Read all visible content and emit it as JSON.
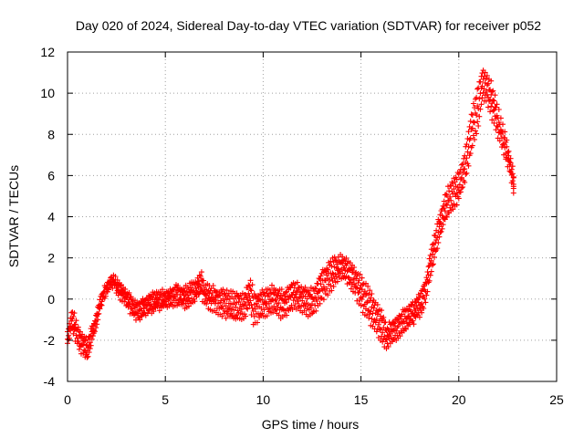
{
  "chart_data": {
    "type": "scatter",
    "title": "Day 020 of 2024, Sidereal Day-to-day VTEC variation (SDTVAR) for receiver p052",
    "xlabel": "GPS time / hours",
    "ylabel": "SDTVAR / TECUs",
    "xlim": [
      0,
      25
    ],
    "ylim": [
      -4,
      12
    ],
    "xticks": [
      0,
      5,
      10,
      15,
      20,
      25
    ],
    "yticks": [
      -4,
      -2,
      0,
      2,
      4,
      6,
      8,
      10,
      12
    ],
    "grid": true,
    "marker": "+",
    "colors": {
      "series": "#ff0000",
      "grid": "#a0a0a0",
      "axis": "#000000"
    },
    "series": [
      {
        "name": "SDTVAR",
        "sample_step_hours": 0.1,
        "x": [
          0.0,
          0.2,
          0.4,
          0.6,
          0.8,
          1.0,
          1.2,
          1.4,
          1.6,
          1.8,
          2.0,
          2.2,
          2.4,
          2.6,
          2.8,
          3.0,
          3.2,
          3.4,
          3.6,
          3.8,
          4.0,
          4.5,
          5.0,
          5.5,
          6.0,
          6.5,
          6.8,
          7.0,
          7.5,
          8.0,
          8.5,
          9.0,
          9.3,
          9.5,
          10.0,
          10.5,
          11.0,
          11.5,
          12.0,
          12.5,
          13.0,
          13.5,
          14.0,
          14.5,
          15.0,
          15.5,
          16.0,
          16.3,
          16.6,
          17.0,
          17.5,
          18.0,
          18.3,
          18.5,
          18.8,
          19.0,
          19.3,
          19.6,
          20.0,
          20.3,
          20.6,
          21.0,
          21.2,
          21.4,
          21.6,
          21.8,
          22.0,
          22.3,
          22.6,
          22.8
        ],
        "y": [
          -1.8,
          -1.0,
          -1.5,
          -2.0,
          -2.2,
          -2.5,
          -1.8,
          -1.2,
          -0.4,
          0.2,
          0.6,
          0.9,
          0.8,
          0.5,
          0.2,
          0.0,
          -0.2,
          -0.5,
          -0.6,
          -0.4,
          -0.3,
          -0.1,
          0.0,
          0.2,
          0.1,
          0.4,
          0.8,
          0.2,
          0.0,
          -0.2,
          -0.4,
          -0.3,
          0.3,
          -0.5,
          -0.2,
          0.0,
          -0.3,
          0.2,
          0.0,
          -0.2,
          0.7,
          1.2,
          1.6,
          1.1,
          0.3,
          -0.5,
          -1.3,
          -1.8,
          -1.6,
          -1.2,
          -0.8,
          -0.3,
          0.5,
          1.6,
          2.8,
          3.5,
          4.5,
          5.0,
          5.5,
          6.5,
          8.0,
          9.5,
          10.5,
          10.2,
          9.8,
          9.2,
          8.5,
          7.6,
          6.5,
          5.6
        ],
        "band_halfwidth": [
          0.35,
          0.45,
          0.45,
          0.45,
          0.45,
          0.45,
          0.4,
          0.3,
          0.3,
          0.25,
          0.25,
          0.2,
          0.2,
          0.3,
          0.3,
          0.3,
          0.4,
          0.4,
          0.4,
          0.4,
          0.4,
          0.4,
          0.4,
          0.4,
          0.45,
          0.5,
          0.5,
          0.5,
          0.5,
          0.6,
          0.6,
          0.6,
          0.7,
          0.7,
          0.6,
          0.6,
          0.6,
          0.6,
          0.6,
          0.6,
          0.7,
          0.7,
          0.5,
          0.5,
          0.7,
          0.7,
          0.7,
          0.5,
          0.5,
          0.5,
          0.5,
          0.5,
          0.6,
          0.6,
          0.6,
          0.6,
          0.7,
          0.7,
          0.7,
          0.8,
          1.0,
          1.0,
          0.7,
          0.7,
          0.7,
          0.7,
          0.6,
          0.5,
          0.4,
          0.4
        ]
      }
    ]
  }
}
